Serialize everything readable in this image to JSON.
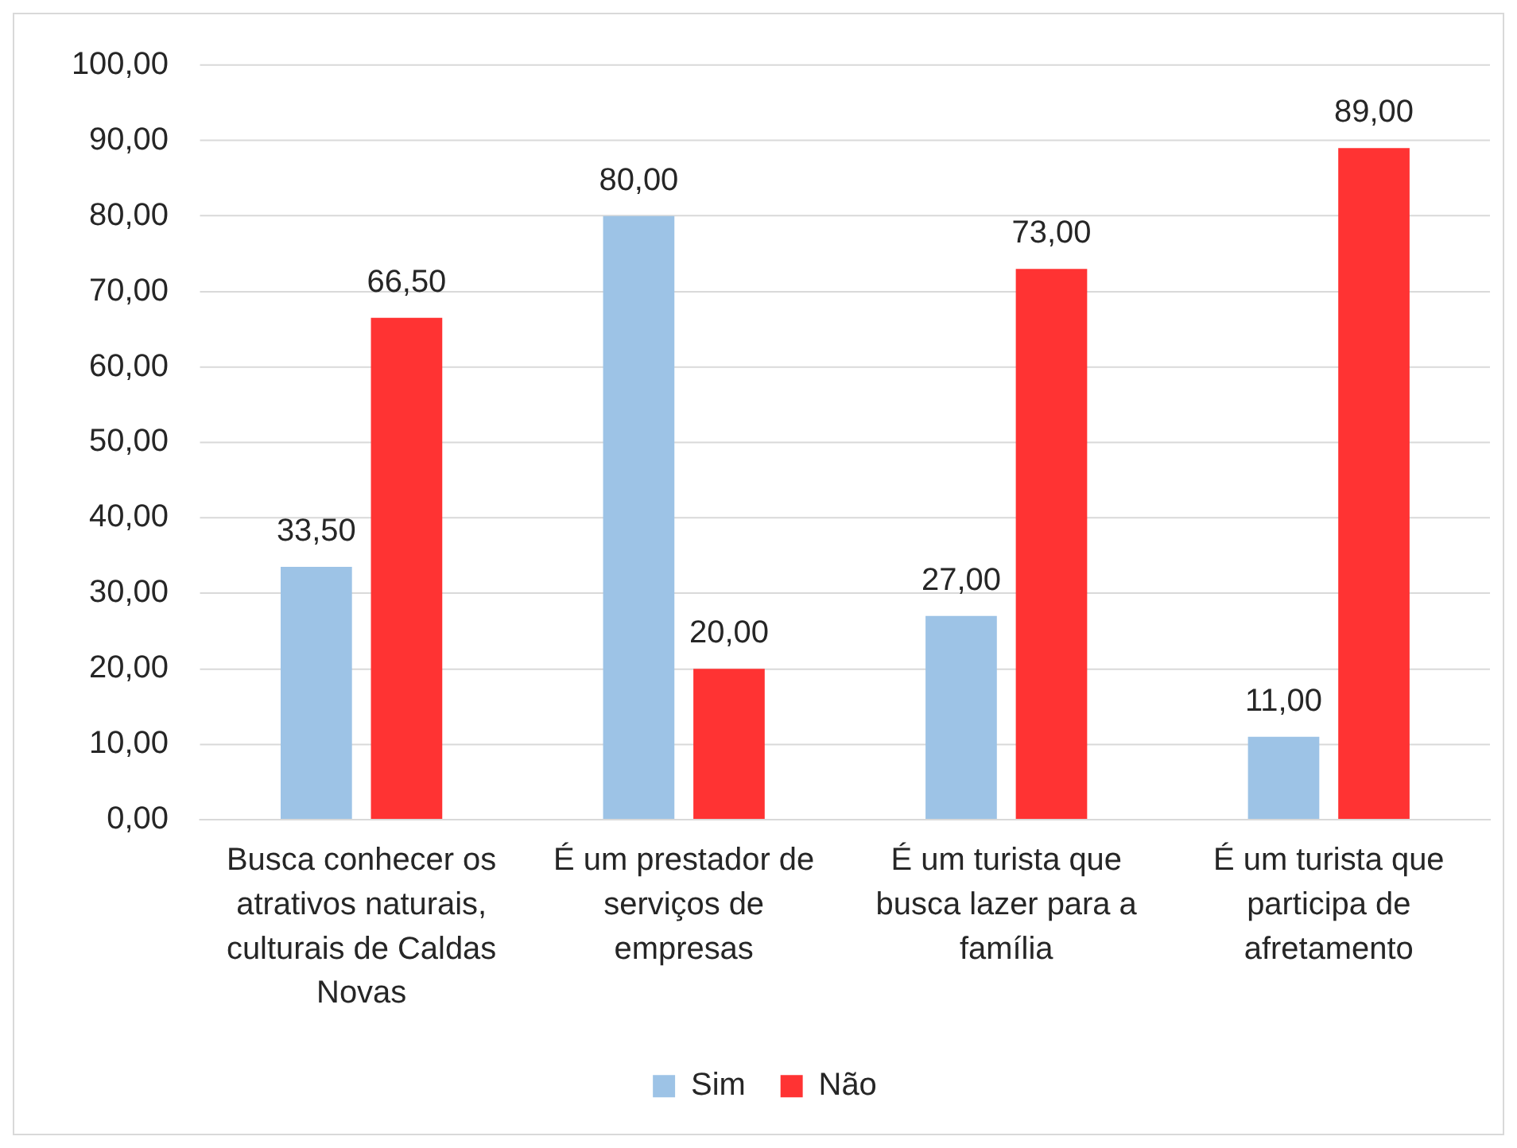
{
  "chart_data": {
    "type": "bar",
    "categories": [
      "Busca conhecer os atrativos naturais, culturais de Caldas Novas",
      "É um prestador de serviços de empresas",
      "É um turista que busca lazer para a família",
      "É um turista que participa de afretamento"
    ],
    "series": [
      {
        "name": "Sim",
        "color": "#9dc3e6",
        "values": [
          33.5,
          80,
          27,
          11
        ],
        "value_labels": [
          "33,50",
          "80,00",
          "27,00",
          "11,00"
        ]
      },
      {
        "name": "Não",
        "color": "#ff3333",
        "values": [
          66.5,
          20,
          73,
          89
        ],
        "value_labels": [
          "66,50",
          "20,00",
          "73,00",
          "89,00"
        ]
      }
    ],
    "ylim": [
      0,
      100
    ],
    "yticks": [
      {
        "value": 0,
        "label": "0,00"
      },
      {
        "value": 10,
        "label": "10,00"
      },
      {
        "value": 20,
        "label": "20,00"
      },
      {
        "value": 30,
        "label": "30,00"
      },
      {
        "value": 40,
        "label": "40,00"
      },
      {
        "value": 50,
        "label": "50,00"
      },
      {
        "value": 60,
        "label": "60,00"
      },
      {
        "value": 70,
        "label": "70,00"
      },
      {
        "value": 80,
        "label": "80,00"
      },
      {
        "value": 90,
        "label": "90,00"
      },
      {
        "value": 100,
        "label": "100,00"
      }
    ],
    "grid": "y",
    "legend": "bottom"
  }
}
